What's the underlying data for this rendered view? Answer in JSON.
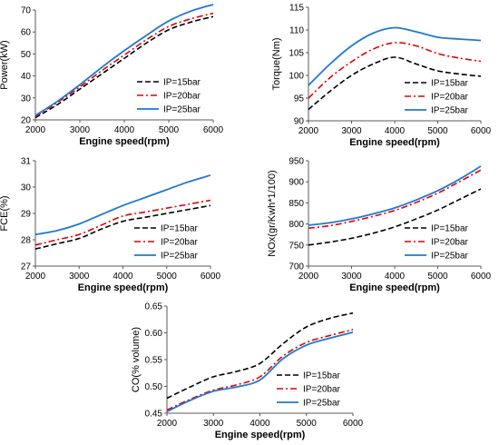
{
  "legend_labels": [
    "IP=15bar",
    "IP=20bar",
    "IP=25bar"
  ],
  "series_colors": [
    "#000000",
    "#e00000",
    "#1f78d1"
  ],
  "chart_data": [
    {
      "type": "line",
      "ylabel": "Power(kW)",
      "xlabel": "Engine speed(rpm)",
      "xlim": [
        2000,
        6000
      ],
      "ylim": [
        20,
        70
      ],
      "xticks": [
        2000,
        3000,
        4000,
        5000,
        6000
      ],
      "yticks": [
        20,
        30,
        40,
        50,
        60,
        70
      ],
      "legend": "bottom-right",
      "x": [
        2000,
        2500,
        3000,
        3500,
        4000,
        4500,
        5000,
        5500,
        6000
      ],
      "series": [
        {
          "name": "IP=15bar",
          "values": [
            21,
            27,
            34,
            41,
            48,
            55,
            61,
            64.5,
            67
          ]
        },
        {
          "name": "IP=20bar",
          "values": [
            21.5,
            28,
            35,
            42.5,
            49.5,
            56.5,
            62.5,
            66,
            68.5
          ]
        },
        {
          "name": "IP=25bar",
          "values": [
            22,
            28.5,
            36,
            44,
            51.5,
            58.5,
            65,
            69.5,
            72.5
          ]
        }
      ]
    },
    {
      "type": "line",
      "ylabel": "Torque(Nm)",
      "xlabel": "Engine speed(rpm)",
      "xlim": [
        2000,
        6000
      ],
      "ylim": [
        90,
        115
      ],
      "xticks": [
        2000,
        3000,
        4000,
        5000,
        6000
      ],
      "yticks": [
        90,
        95,
        100,
        105,
        110,
        115
      ],
      "legend": "bottom-right",
      "x": [
        2000,
        2500,
        3000,
        3500,
        4000,
        4500,
        5000,
        5500,
        6000
      ],
      "series": [
        {
          "name": "IP=15bar",
          "values": [
            92.5,
            96.5,
            100,
            102.5,
            104,
            102.5,
            101,
            100.3,
            99.8
          ]
        },
        {
          "name": "IP=20bar",
          "values": [
            95,
            99.5,
            103,
            105.8,
            107.2,
            106.5,
            104.8,
            103.8,
            103.1
          ]
        },
        {
          "name": "IP=25bar",
          "values": [
            97.8,
            102.5,
            106.5,
            109.3,
            110.5,
            109.6,
            108.4,
            108,
            107.7
          ]
        }
      ]
    },
    {
      "type": "line",
      "ylabel": "FCE(%)",
      "xlabel": "Engine speed(rpm)",
      "xlim": [
        2000,
        6000
      ],
      "ylim": [
        27,
        31
      ],
      "xticks": [
        2000,
        3000,
        4000,
        5000,
        6000
      ],
      "yticks": [
        27,
        28,
        29,
        30,
        31
      ],
      "legend": "bottom-right",
      "x": [
        2000,
        2500,
        3000,
        3500,
        4000,
        4500,
        5000,
        5500,
        6000
      ],
      "series": [
        {
          "name": "IP=15bar",
          "values": [
            27.65,
            27.85,
            28.05,
            28.4,
            28.7,
            28.85,
            29.0,
            29.15,
            29.3
          ]
        },
        {
          "name": "IP=20bar",
          "values": [
            27.8,
            28.0,
            28.2,
            28.55,
            28.9,
            29.05,
            29.2,
            29.35,
            29.5
          ]
        },
        {
          "name": "IP=25bar",
          "values": [
            28.2,
            28.35,
            28.6,
            28.95,
            29.3,
            29.6,
            29.9,
            30.2,
            30.45
          ]
        }
      ]
    },
    {
      "type": "line",
      "ylabel": "NOx(gr/Kwh*1/100)",
      "xlabel": "Engine speed(rpm)",
      "xlim": [
        2000,
        6000
      ],
      "ylim": [
        700,
        950
      ],
      "xticks": [
        2000,
        3000,
        4000,
        5000,
        6000
      ],
      "yticks": [
        700,
        750,
        800,
        850,
        900,
        950
      ],
      "legend": "bottom-right",
      "x": [
        2000,
        2500,
        3000,
        3500,
        4000,
        4500,
        5000,
        5500,
        6000
      ],
      "series": [
        {
          "name": "IP=15bar",
          "values": [
            750,
            757,
            766,
            778,
            793,
            812,
            833,
            858,
            883
          ]
        },
        {
          "name": "IP=20bar",
          "values": [
            790,
            796,
            806,
            818,
            832,
            851,
            873,
            900,
            928
          ]
        },
        {
          "name": "IP=25bar",
          "values": [
            797,
            803,
            812,
            824,
            838,
            857,
            879,
            906,
            937
          ]
        }
      ]
    },
    {
      "type": "line",
      "ylabel": "CO(% volume)",
      "xlabel": "Engine speed(rpm)",
      "xlim": [
        2000,
        6000
      ],
      "ylim": [
        0.45,
        0.65
      ],
      "xticks": [
        2000,
        3000,
        4000,
        5000,
        6000
      ],
      "yticks": [
        0.45,
        0.5,
        0.55,
        0.6,
        0.65
      ],
      "legend": "bottom-right",
      "x": [
        2000,
        2500,
        3000,
        3500,
        4000,
        4500,
        5000,
        5500,
        6000
      ],
      "series": [
        {
          "name": "IP=15bar",
          "values": [
            0.478,
            0.499,
            0.518,
            0.528,
            0.543,
            0.58,
            0.611,
            0.627,
            0.637
          ]
        },
        {
          "name": "IP=20bar",
          "values": [
            0.456,
            0.476,
            0.493,
            0.503,
            0.518,
            0.557,
            0.582,
            0.595,
            0.606
          ]
        },
        {
          "name": "IP=25bar",
          "values": [
            0.453,
            0.474,
            0.491,
            0.499,
            0.512,
            0.552,
            0.577,
            0.59,
            0.601
          ]
        }
      ]
    }
  ]
}
